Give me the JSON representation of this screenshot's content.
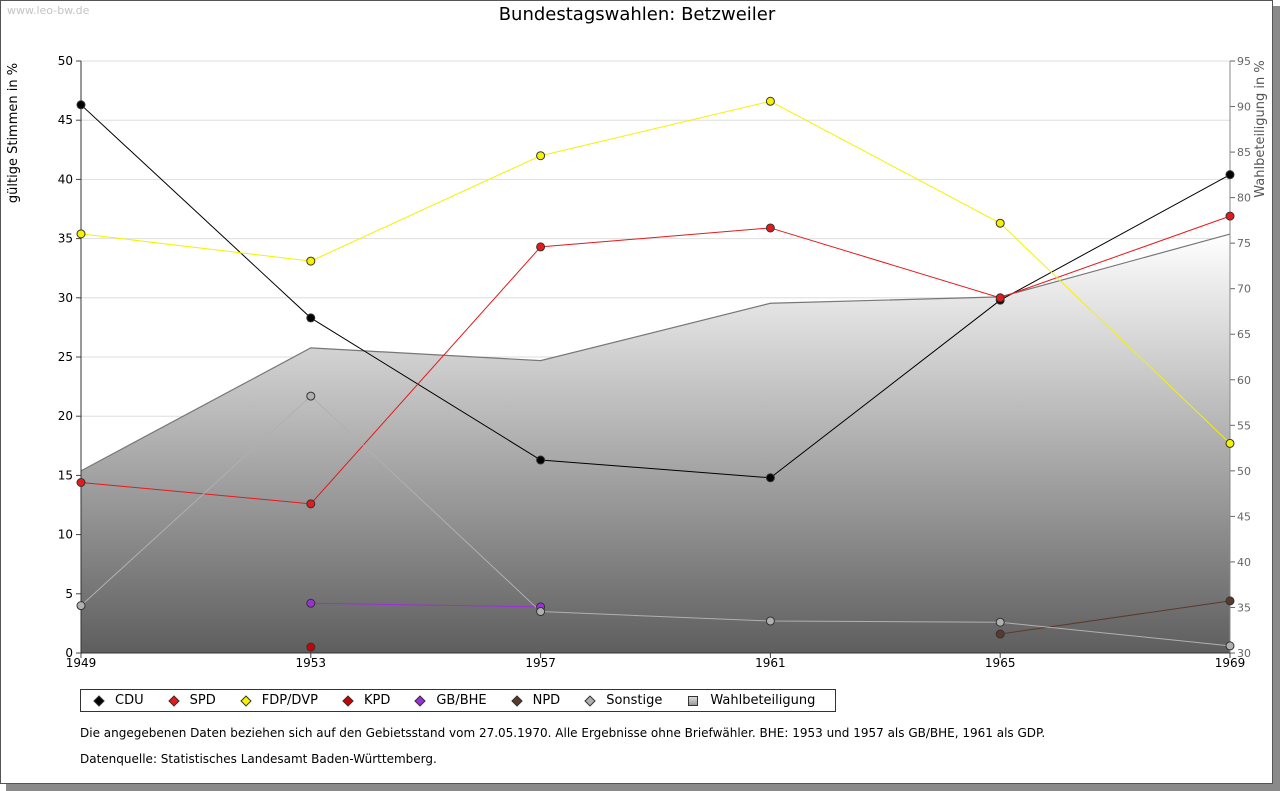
{
  "watermark": "www.leo-bw.de",
  "chart_data": {
    "type": "line",
    "title": "Bundestagswahlen: Betzweiler",
    "ylabel": "gültige Stimmen in %",
    "y2label": "Wahlbeteiligung in %",
    "x": [
      "1949",
      "1953",
      "1957",
      "1961",
      "1965",
      "1969"
    ],
    "ylim": [
      0,
      50
    ],
    "yticks": [
      "0",
      "5",
      "10",
      "15",
      "20",
      "25",
      "30",
      "35",
      "40",
      "45",
      "50"
    ],
    "y2lim": [
      30,
      95
    ],
    "y2ticks": [
      "30",
      "35",
      "40",
      "45",
      "50",
      "55",
      "60",
      "65",
      "70",
      "75",
      "80",
      "85",
      "90",
      "95"
    ],
    "series": [
      {
        "name": "CDU",
        "color": "#000000",
        "values": [
          46.3,
          28.3,
          16.3,
          14.8,
          29.8,
          40.4
        ]
      },
      {
        "name": "SPD",
        "color": "#e41a1c",
        "values": [
          14.4,
          12.6,
          34.3,
          35.9,
          30.0,
          36.9
        ]
      },
      {
        "name": "FDP/DVP",
        "color": "#f5f200",
        "values": [
          35.4,
          33.1,
          42.0,
          46.6,
          36.3,
          17.7
        ]
      },
      {
        "name": "KPD",
        "color": "#cc0000",
        "values": [
          null,
          0.5,
          null,
          null,
          null,
          null
        ]
      },
      {
        "name": "GB/BHE",
        "color": "#9b30d9",
        "values": [
          null,
          4.2,
          3.9,
          null,
          null,
          null
        ]
      },
      {
        "name": "NPD",
        "color": "#5a3a2a",
        "values": [
          null,
          null,
          null,
          null,
          1.6,
          4.4
        ]
      },
      {
        "name": "Sonstige",
        "color": "#b0b0b0",
        "values": [
          4.0,
          21.7,
          3.5,
          2.7,
          2.6,
          0.6
        ]
      }
    ],
    "turnout": {
      "name": "Wahlbeteiligung",
      "values": [
        50.0,
        63.5,
        62.1,
        68.4,
        69.1,
        76.0
      ]
    }
  },
  "notes": {
    "line1": "Die angegebenen Daten beziehen sich auf den Gebietsstand vom 27.05.1970. Alle Ergebnisse ohne Briefwähler. BHE: 1953 und 1957 als GB/BHE, 1961 als GDP.",
    "line2": "Datenquelle: Statistisches Landesamt Baden-Württemberg."
  }
}
